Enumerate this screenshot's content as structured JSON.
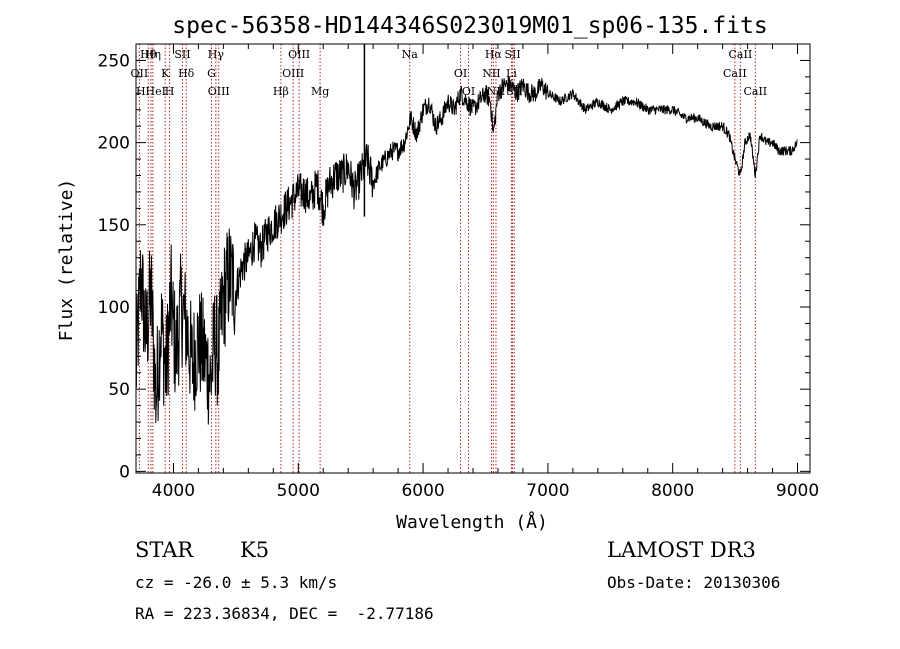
{
  "chart_data": {
    "type": "line",
    "title": "spec-56358-HD144346S023019M01_sp06-135.fits",
    "xlabel": "Wavelength (Å)",
    "ylabel": "Flux (relative)",
    "xlim": [
      3700,
      9100
    ],
    "ylim": [
      -10,
      2600
    ],
    "ylim_note": "y tick labels printed as 0,50,100,150,200,250 at values 0,500,1000,1500,2000,2500",
    "xticks": [
      4000,
      5000,
      6000,
      7000,
      8000,
      9000
    ],
    "xtick_labels": [
      "4000",
      "5000",
      "6000",
      "7000",
      "8000",
      "9000"
    ],
    "yticks": [
      0,
      500,
      1000,
      1500,
      2000,
      2500
    ],
    "ytick_labels": [
      "0",
      "50",
      "100",
      "150",
      "200",
      "250"
    ],
    "series": [
      {
        "name": "flux",
        "x": [
          3700,
          3740,
          3780,
          3820,
          3860,
          3900,
          3940,
          3980,
          4020,
          4060,
          4100,
          4150,
          4200,
          4250,
          4300,
          4330,
          4360,
          4400,
          4450,
          4500,
          4550,
          4600,
          4650,
          4700,
          4750,
          4800,
          4850,
          4900,
          4950,
          5000,
          5050,
          5100,
          5150,
          5200,
          5250,
          5300,
          5350,
          5400,
          5450,
          5500,
          5550,
          5600,
          5650,
          5700,
          5750,
          5800,
          5850,
          5900,
          5950,
          6000,
          6050,
          6100,
          6150,
          6200,
          6250,
          6300,
          6350,
          6400,
          6450,
          6500,
          6540,
          6563,
          6600,
          6650,
          6700,
          6750,
          6800,
          6850,
          6900,
          6950,
          7000,
          7100,
          7200,
          7300,
          7400,
          7500,
          7600,
          7700,
          7800,
          7900,
          8000,
          8100,
          8200,
          8300,
          8400,
          8450,
          8498,
          8542,
          8580,
          8620,
          8662,
          8700,
          8750,
          8800,
          8850,
          8900,
          8950,
          9000
        ],
        "y": [
          600,
          1200,
          800,
          1100,
          450,
          900,
          600,
          1050,
          700,
          1000,
          900,
          650,
          800,
          700,
          550,
          800,
          700,
          1050,
          1200,
          1100,
          1250,
          1300,
          1400,
          1350,
          1450,
          1500,
          1550,
          1600,
          1650,
          1700,
          1700,
          1650,
          1750,
          1600,
          1750,
          1800,
          1800,
          1850,
          1700,
          1800,
          1900,
          1750,
          1850,
          1900,
          1950,
          1950,
          2000,
          2150,
          2050,
          2200,
          2250,
          2100,
          2150,
          2250,
          2200,
          2300,
          2250,
          2200,
          2250,
          2300,
          2250,
          2050,
          2300,
          2350,
          2350,
          2300,
          2350,
          2300,
          2300,
          2350,
          2300,
          2250,
          2300,
          2200,
          2250,
          2200,
          2250,
          2250,
          2200,
          2200,
          2200,
          2150,
          2150,
          2100,
          2100,
          2050,
          1900,
          1800,
          2000,
          2050,
          1800,
          2050,
          2000,
          2000,
          1950,
          1950,
          1950,
          2000
        ]
      }
    ],
    "line_markers": [
      {
        "label": "Hθ",
        "wavelength": 3798
      },
      {
        "label": "OII",
        "wavelength": 3727
      },
      {
        "label": "HHeI",
        "wavelength": 3820
      },
      {
        "label": "Hη",
        "wavelength": 3835
      },
      {
        "label": "K",
        "wavelength": 3934
      },
      {
        "label": "H",
        "wavelength": 3969
      },
      {
        "label": "SII",
        "wavelength": 4072
      },
      {
        "label": "Hδ",
        "wavelength": 4102
      },
      {
        "label": "OIII",
        "wavelength": 4363
      },
      {
        "label": "Hγ",
        "wavelength": 4340
      },
      {
        "label": "G",
        "wavelength": 4305
      },
      {
        "label": "Hβ",
        "wavelength": 4861
      },
      {
        "label": "OIII",
        "wavelength": 5007
      },
      {
        "label": "OIII",
        "wavelength": 4959
      },
      {
        "label": "Mg",
        "wavelength": 5175
      },
      {
        "label": "Na",
        "wavelength": 5893
      },
      {
        "label": "OI",
        "wavelength": 6300
      },
      {
        "label": "OI",
        "wavelength": 6364
      },
      {
        "label": "Hα",
        "wavelength": 6563
      },
      {
        "label": "NII",
        "wavelength": 6548
      },
      {
        "label": "NII",
        "wavelength": 6584
      },
      {
        "label": "SII",
        "wavelength": 6717
      },
      {
        "label": "Li",
        "wavelength": 6708
      },
      {
        "label": "SII",
        "wavelength": 6731
      },
      {
        "label": "CaII",
        "wavelength": 8542
      },
      {
        "label": "CaII",
        "wavelength": 8498
      },
      {
        "label": "CaII",
        "wavelength": 8662
      }
    ],
    "vertical_line_wavelength": 5530
  },
  "info": {
    "object_class": "STAR",
    "subclass": "K5",
    "survey": "LAMOST DR3",
    "cz": "cz = -26.0 ± 5.3 km/s",
    "obs_date": "Obs-Date: 20130306",
    "coords": "RA = 223.36834, DEC =  -2.77186"
  },
  "colors": {
    "spectrum": "#000000",
    "marker_lines": "#b22222",
    "background": "#ffffff"
  }
}
